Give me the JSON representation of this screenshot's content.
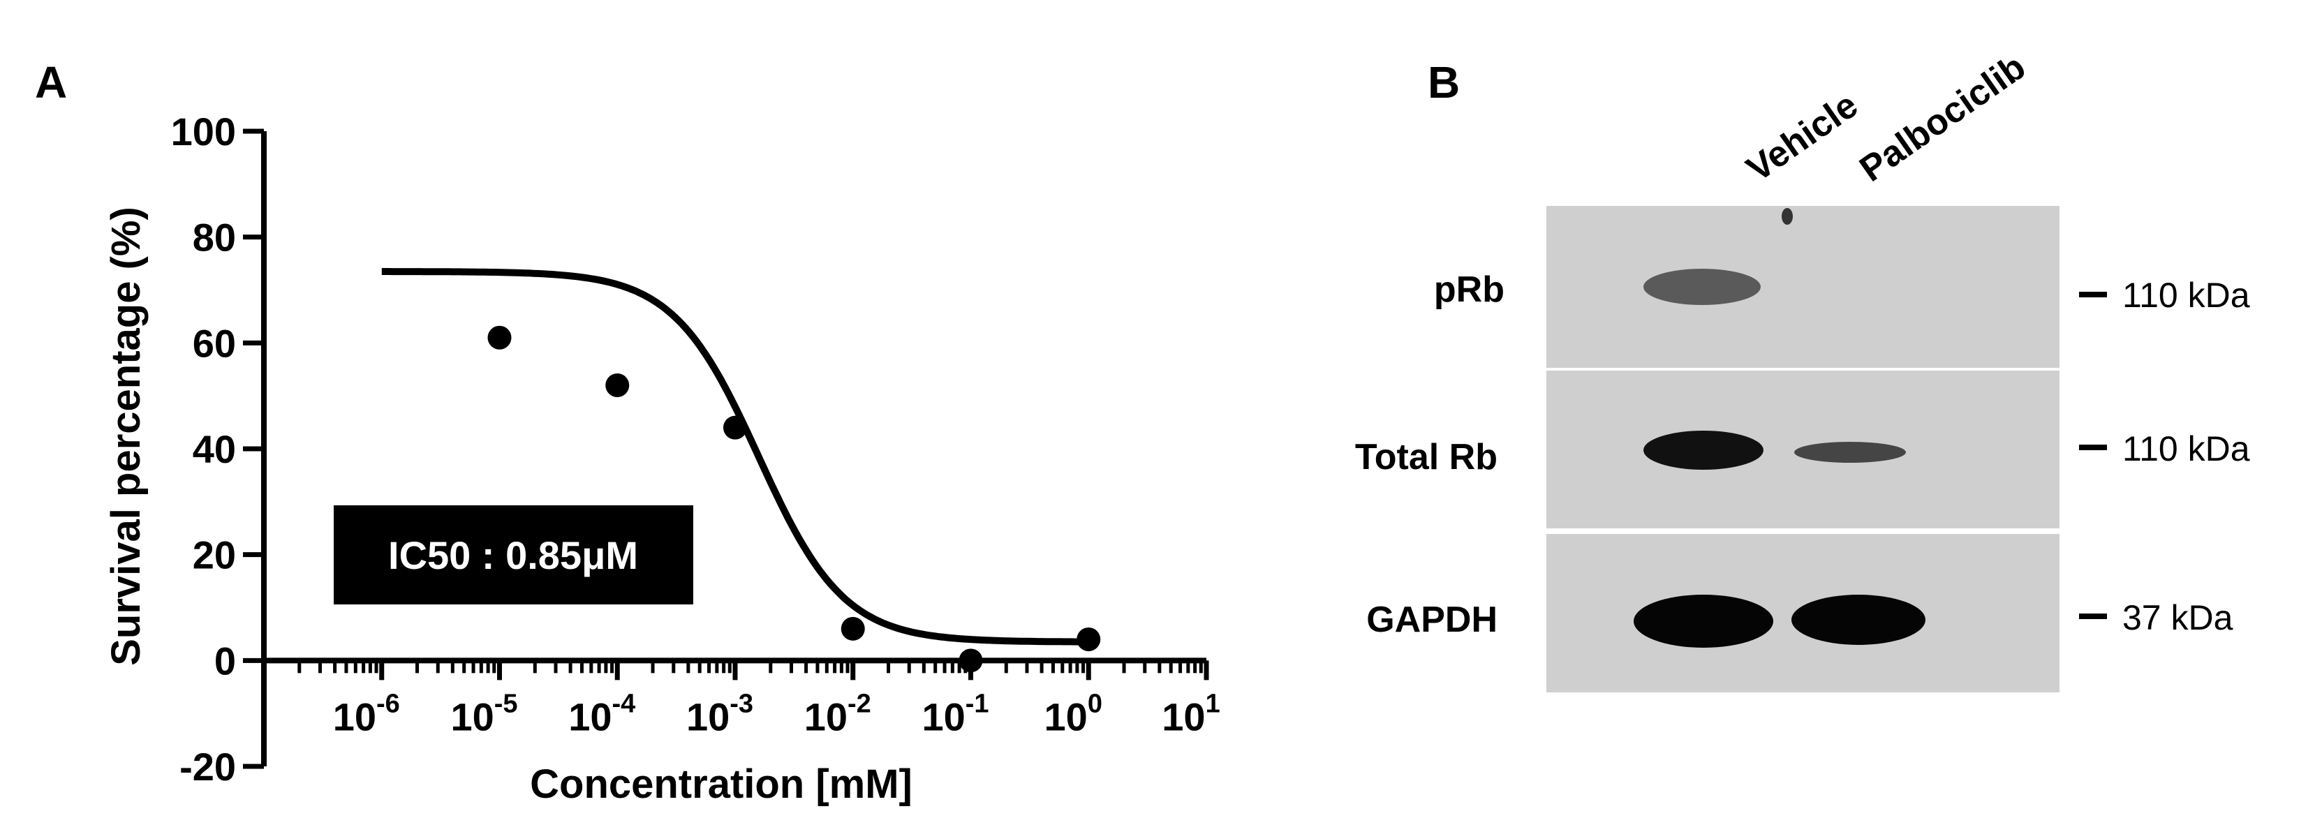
{
  "panel_a": {
    "letter": "A",
    "ic50_label": "IC50 : 0.85μM"
  },
  "panel_b": {
    "letter": "B",
    "lanes": [
      "Vehicle",
      "Palbociclib"
    ],
    "rows": [
      {
        "label": "pRb",
        "marker": "110 kDa",
        "vehicle_band": 0.65,
        "palbociclib_band": 0.0
      },
      {
        "label": "Total Rb",
        "marker": "110 kDa",
        "vehicle_band": 0.95,
        "palbociclib_band": 0.55
      },
      {
        "label": "GAPDH",
        "marker": "37 kDa",
        "vehicle_band": 1.0,
        "palbociclib_band": 1.0
      }
    ]
  },
  "chart_data": {
    "type": "scatter",
    "title": "",
    "xlabel": "Concentration [mM]",
    "ylabel": "Survival percentage (%)",
    "x_scale": "log",
    "xlim": [
      1e-07,
      10
    ],
    "ylim": [
      -20,
      100
    ],
    "y_ticks": [
      -20,
      0,
      20,
      40,
      60,
      80,
      100
    ],
    "x_tick_exponents": [
      -6,
      -5,
      -4,
      -3,
      -2,
      -1,
      0,
      1
    ],
    "x_tick_base": "10",
    "points": [
      {
        "x": 1e-05,
        "y": 61
      },
      {
        "x": 0.0001,
        "y": 52
      },
      {
        "x": 0.001,
        "y": 44
      },
      {
        "x": 0.01,
        "y": 6
      },
      {
        "x": 0.1,
        "y": 0
      },
      {
        "x": 1,
        "y": 4
      }
    ],
    "fit_curve": {
      "model": "sigmoidal dose-response",
      "top": 73.5,
      "bottom": 3.5,
      "log_ec50": -2.8,
      "hill": -1.2,
      "x_range": [
        1e-06,
        1
      ]
    },
    "grid": false,
    "legend": "none"
  }
}
